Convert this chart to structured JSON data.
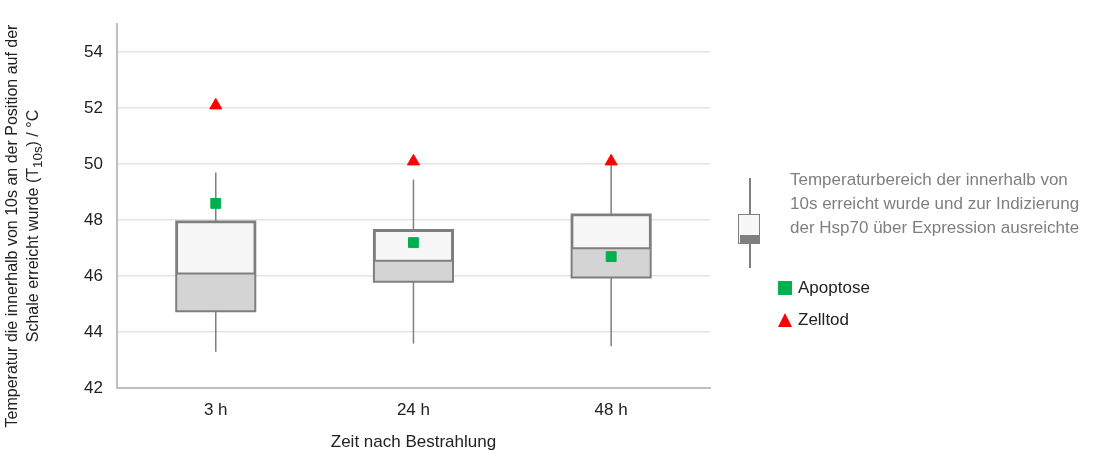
{
  "chart_data": {
    "type": "box",
    "xlabel": "Zeit nach Bestrahlung",
    "ylabel": "Temperatur die innerhalb von 10s an der Position auf der Schale erreicht wurde (T$_{10s}$) / °C",
    "categories": [
      "3 h",
      "24 h",
      "48 h"
    ],
    "ylim": [
      42,
      55
    ],
    "yticks": [
      42,
      44,
      46,
      48,
      50,
      52,
      54
    ],
    "grid": "y",
    "legend": "right",
    "series": [
      {
        "name": "Temperaturbereich der innerhalb von 10s erreicht wurde und zur Indizierung der Hsp70 über Expression ausreichte",
        "type": "box",
        "color": "#7f7f7f",
        "boxes": [
          {
            "low": 43.3,
            "q1": 44.75,
            "median": 46.1,
            "q3": 47.95,
            "high": 49.7
          },
          {
            "low": 43.6,
            "q1": 45.8,
            "median": 46.55,
            "q3": 47.65,
            "high": 49.45
          },
          {
            "low": 43.5,
            "q1": 45.95,
            "median": 47.0,
            "q3": 48.2,
            "high": 50.3
          }
        ]
      },
      {
        "name": "Apoptose",
        "type": "scatter",
        "marker": "square",
        "color": "#00b050",
        "x": [
          "3 h",
          "24 h",
          "48 h"
        ],
        "values": [
          48.6,
          47.2,
          46.7
        ]
      },
      {
        "name": "Zelltod",
        "type": "scatter",
        "marker": "triangle",
        "color": "#ff0000",
        "x": [
          "3 h",
          "24 h",
          "48 h"
        ],
        "values": [
          52.1,
          50.1,
          50.1
        ]
      }
    ]
  }
}
